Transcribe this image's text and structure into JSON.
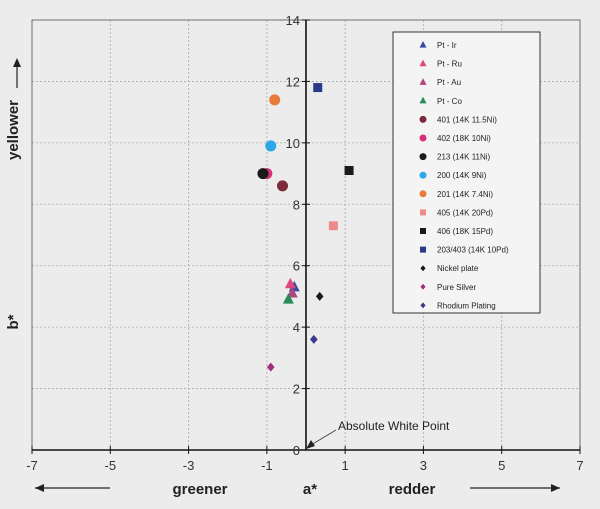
{
  "chart_data": {
    "type": "scatter",
    "title": "",
    "xlabel": "a*",
    "ylabel": "b*",
    "x_direction_left": "greener",
    "x_direction_right": "redder",
    "y_direction_up": "yellower",
    "xlim": [
      -7,
      7
    ],
    "ylim": [
      0,
      14
    ],
    "xticks": [
      -7,
      -5,
      -3,
      -1,
      1,
      3,
      5,
      7
    ],
    "yticks": [
      0,
      2,
      4,
      6,
      8,
      10,
      12,
      14
    ],
    "grid": true,
    "legend_position": "top-right",
    "annotation": {
      "text": "Absolute White Point",
      "x": 0,
      "y": 0
    },
    "series": [
      {
        "name": "Pt - Ir",
        "marker": "triangle",
        "color": "#3b4aa0",
        "points": [
          [
            -0.3,
            5.3
          ]
        ]
      },
      {
        "name": "Pt - Ru",
        "marker": "triangle",
        "color": "#e0457b",
        "points": [
          [
            -0.4,
            5.4
          ]
        ]
      },
      {
        "name": "Pt - Au",
        "marker": "triangle",
        "color": "#b0457e",
        "points": [
          [
            -0.35,
            5.1
          ]
        ]
      },
      {
        "name": "Pt - Co",
        "marker": "triangle",
        "color": "#2a8a5a",
        "points": [
          [
            -0.45,
            4.9
          ]
        ]
      },
      {
        "name": "401 (14K 11.5Ni)",
        "marker": "circle",
        "color": "#7a2a3a",
        "points": [
          [
            -0.6,
            8.6
          ]
        ]
      },
      {
        "name": "402 (18K 10Ni)",
        "marker": "circle",
        "color": "#d6307a",
        "points": [
          [
            -1.0,
            9.0
          ]
        ]
      },
      {
        "name": "213 (14K 11Ni)",
        "marker": "circle",
        "color": "#1a1a1a",
        "points": [
          [
            -1.1,
            9.0
          ]
        ]
      },
      {
        "name": "200 (14K 9Ni)",
        "marker": "circle",
        "color": "#2aa8e8",
        "points": [
          [
            -0.9,
            9.9
          ]
        ]
      },
      {
        "name": "201 (14K 7.4Ni)",
        "marker": "circle",
        "color": "#e87a3a",
        "points": [
          [
            -0.8,
            11.4
          ]
        ]
      },
      {
        "name": "405 (14K 20Pd)",
        "marker": "square",
        "color": "#f08a8a",
        "points": [
          [
            0.7,
            7.3
          ]
        ]
      },
      {
        "name": "406 (18K 15Pd)",
        "marker": "square",
        "color": "#1a1a1a",
        "points": [
          [
            1.1,
            9.1
          ]
        ]
      },
      {
        "name": "203/403 (14K 10Pd)",
        "marker": "square",
        "color": "#2a3a8a",
        "points": [
          [
            0.3,
            11.8
          ]
        ]
      },
      {
        "name": "Nickel plate",
        "marker": "diamond",
        "color": "#1a1a1a",
        "points": [
          [
            0.35,
            5.0
          ]
        ]
      },
      {
        "name": "Pure Silver",
        "marker": "diamond",
        "color": "#a0307a",
        "points": [
          [
            -0.9,
            2.7
          ]
        ]
      },
      {
        "name": "Rhodium Plating",
        "marker": "diamond",
        "color": "#3a3a8a",
        "points": [
          [
            0.2,
            3.6
          ]
        ]
      }
    ]
  }
}
